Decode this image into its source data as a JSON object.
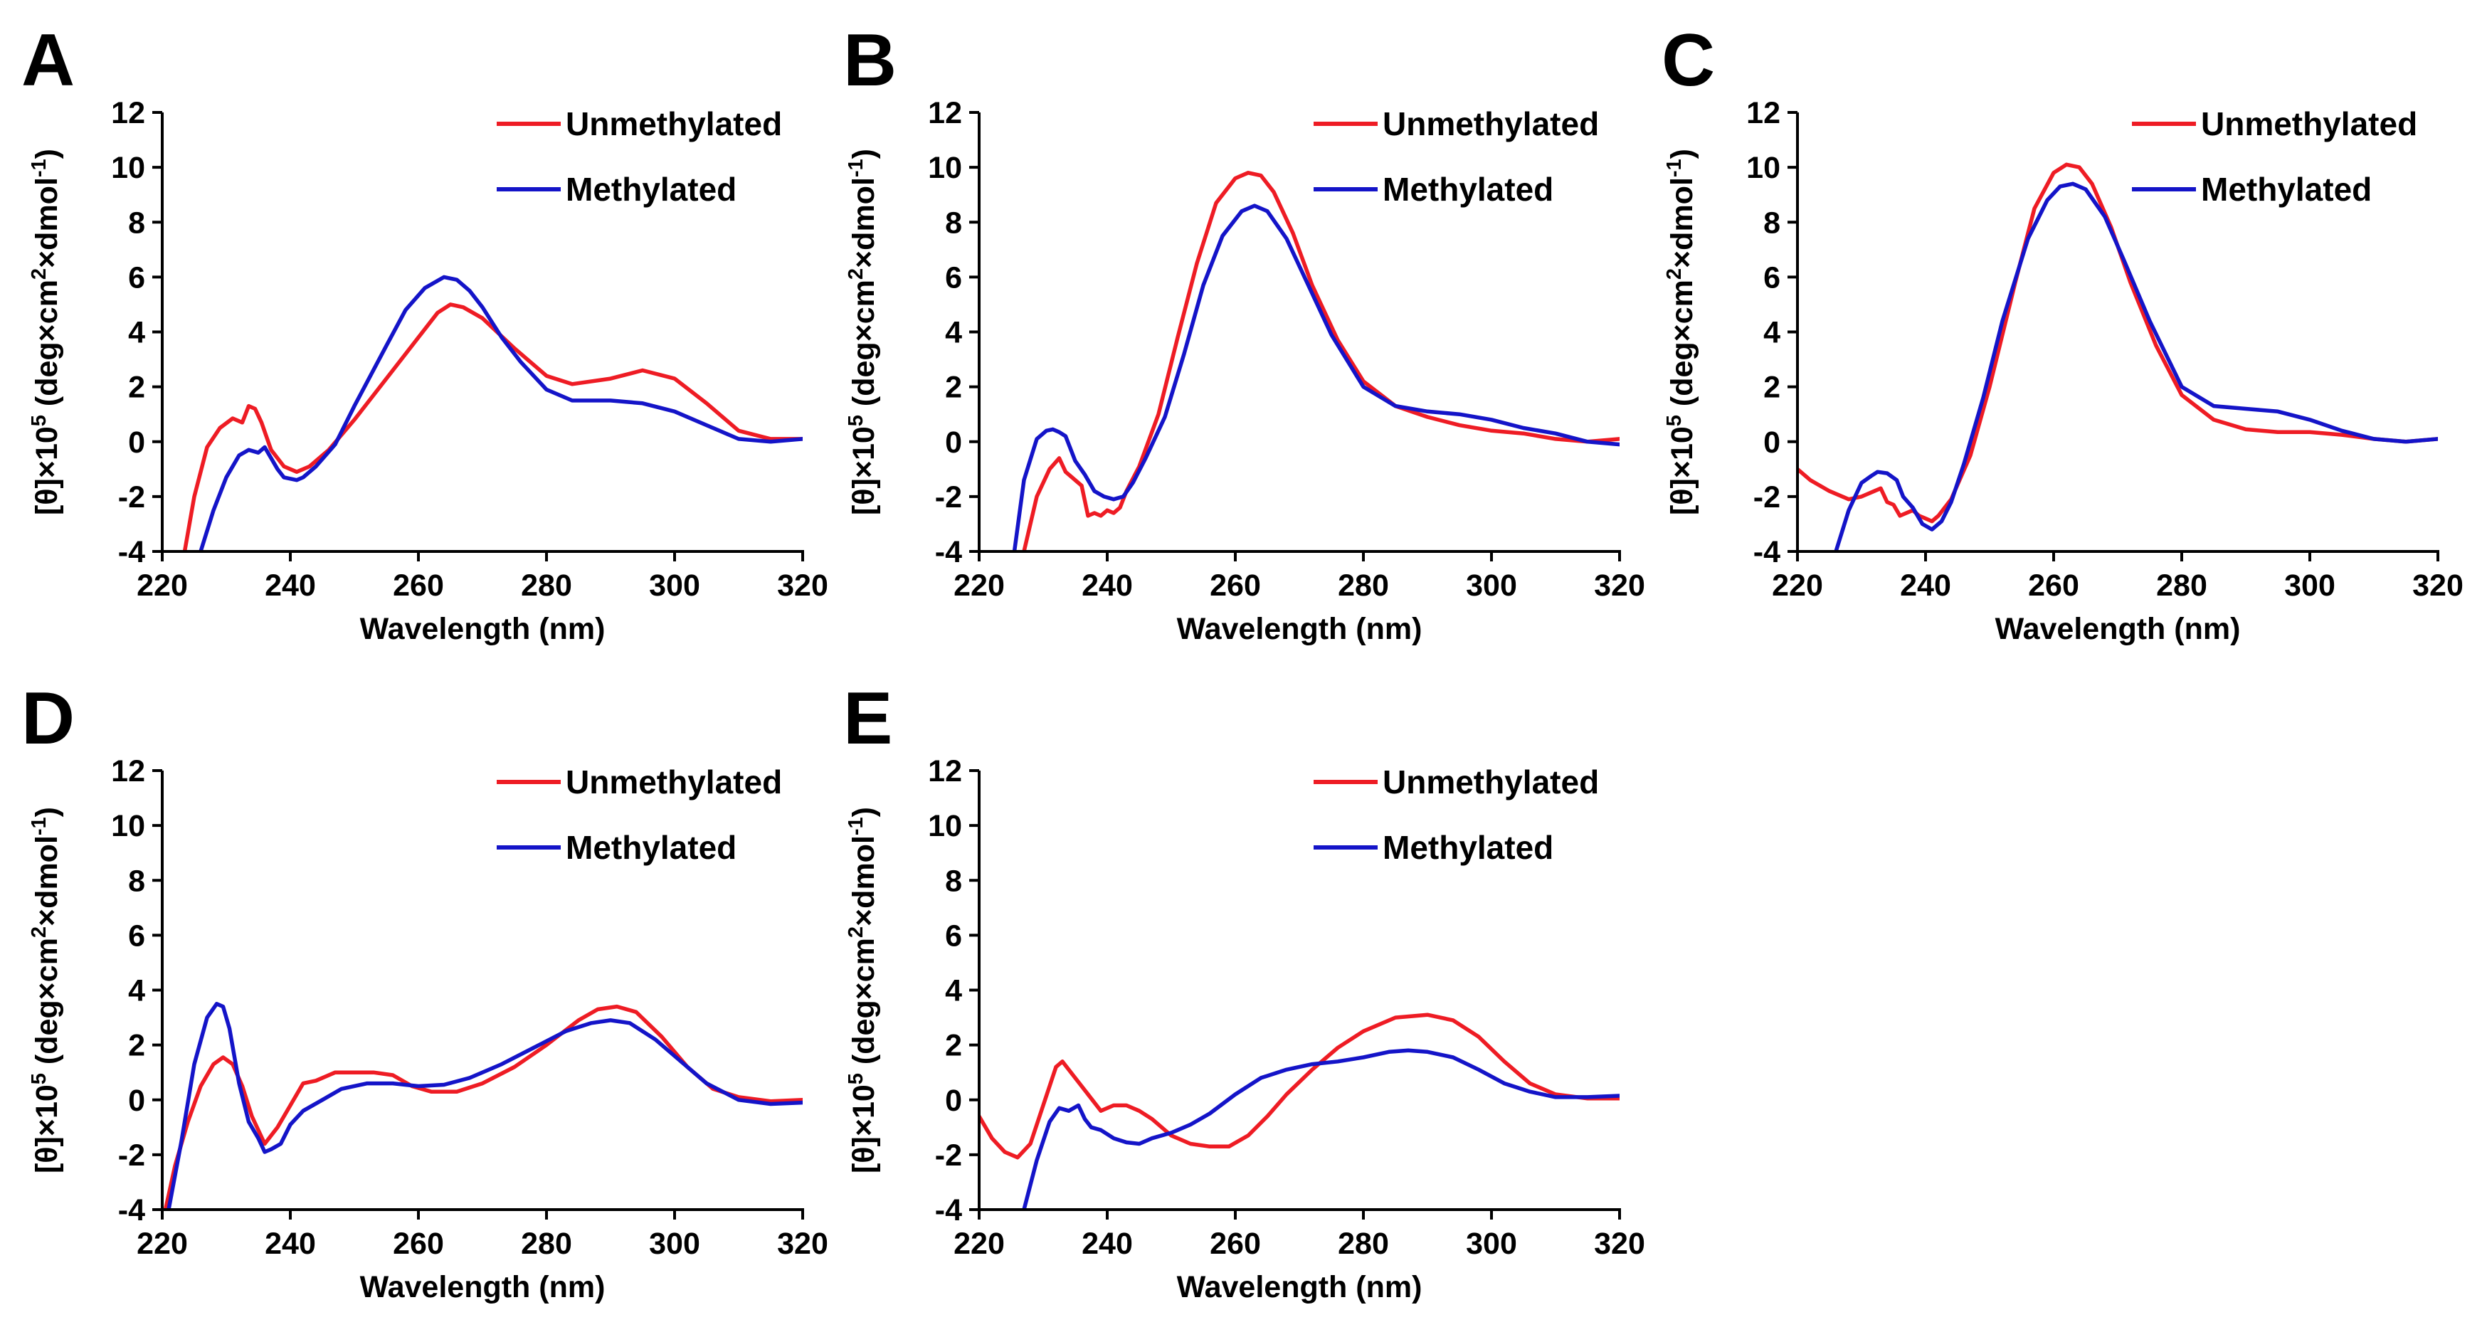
{
  "figure": {
    "y_axis_title_parts": [
      "[θ]×10",
      "5",
      " (deg×cm",
      "2",
      "×dmol",
      "-1",
      ")"
    ],
    "colors": {
      "unmethylated": "#ee1c24",
      "methylated": "#1414c8",
      "axis": "#000000"
    }
  },
  "chart_data": [
    {
      "type": "line",
      "panel": "A",
      "xlabel": "Wavelength (nm)",
      "ylabel": "[θ]×10^5 (deg×cm^2×dmol^-1)",
      "xlim": [
        220,
        320
      ],
      "ylim": [
        -4,
        12
      ],
      "xticks": [
        220,
        240,
        260,
        280,
        300,
        320
      ],
      "yticks": [
        -4,
        -2,
        0,
        2,
        4,
        6,
        8,
        10,
        12
      ],
      "legend": [
        "Unmethylated",
        "Methylated"
      ],
      "legend_position": "top-right",
      "series": [
        {
          "name": "Unmethylated",
          "color": "#ee1c24",
          "x": [
            223.5,
            225,
            227,
            229,
            231,
            232.5,
            233.5,
            234.5,
            235.5,
            237,
            239,
            241,
            243,
            246,
            250,
            255,
            260,
            263,
            265,
            267,
            270,
            275,
            280,
            284,
            290,
            295,
            300,
            305,
            310,
            315,
            320
          ],
          "y": [
            -4,
            -2,
            -0.2,
            0.5,
            0.85,
            0.7,
            1.3,
            1.2,
            0.7,
            -0.3,
            -0.9,
            -1.1,
            -0.9,
            -0.3,
            0.8,
            2.3,
            3.8,
            4.7,
            5.0,
            4.9,
            4.5,
            3.4,
            2.4,
            2.1,
            2.3,
            2.6,
            2.3,
            1.4,
            0.4,
            0.1,
            0.1
          ]
        },
        {
          "name": "Methylated",
          "color": "#1414c8",
          "x": [
            226,
            228,
            230,
            232,
            233.5,
            235,
            236,
            237,
            238,
            239,
            241,
            242,
            244,
            247,
            250,
            255,
            258,
            261,
            264,
            266,
            268,
            270,
            273,
            276,
            280,
            284,
            290,
            295,
            300,
            305,
            310,
            315,
            320
          ],
          "y": [
            -4,
            -2.5,
            -1.3,
            -0.5,
            -0.3,
            -0.4,
            -0.2,
            -0.6,
            -1.0,
            -1.3,
            -1.4,
            -1.3,
            -0.9,
            -0.1,
            1.3,
            3.5,
            4.8,
            5.6,
            6.0,
            5.9,
            5.5,
            4.9,
            3.8,
            2.9,
            1.9,
            1.5,
            1.5,
            1.4,
            1.1,
            0.6,
            0.1,
            0.0,
            0.1
          ]
        }
      ]
    },
    {
      "type": "line",
      "panel": "B",
      "xlabel": "Wavelength (nm)",
      "ylabel": "[θ]×10^5 (deg×cm^2×dmol^-1)",
      "xlim": [
        220,
        320
      ],
      "ylim": [
        -4,
        12
      ],
      "xticks": [
        220,
        240,
        260,
        280,
        300,
        320
      ],
      "yticks": [
        -4,
        -2,
        0,
        2,
        4,
        6,
        8,
        10,
        12
      ],
      "legend": [
        "Unmethylated",
        "Methylated"
      ],
      "legend_position": "top-right",
      "series": [
        {
          "name": "Unmethylated",
          "color": "#ee1c24",
          "x": [
            227,
            229,
            231,
            232.5,
            233.5,
            234.5,
            236,
            237,
            238,
            239,
            240,
            241,
            242,
            243,
            245,
            248,
            251,
            254,
            257,
            260,
            262,
            264,
            266,
            269,
            272,
            276,
            280,
            285,
            290,
            295,
            300,
            305,
            310,
            315,
            320
          ],
          "y": [
            -4,
            -2.0,
            -1.0,
            -0.6,
            -1.1,
            -1.3,
            -1.6,
            -2.7,
            -2.6,
            -2.7,
            -2.5,
            -2.6,
            -2.4,
            -1.8,
            -0.9,
            1.0,
            3.8,
            6.5,
            8.7,
            9.6,
            9.8,
            9.7,
            9.1,
            7.6,
            5.7,
            3.7,
            2.2,
            1.3,
            0.9,
            0.6,
            0.4,
            0.3,
            0.1,
            0.0,
            0.1
          ]
        },
        {
          "name": "Methylated",
          "color": "#1414c8",
          "x": [
            225.5,
            227,
            229,
            230.5,
            231.5,
            232.5,
            233.5,
            235,
            236.5,
            238,
            239.5,
            241,
            242.5,
            244,
            246,
            249,
            252,
            255,
            258,
            261,
            263,
            265,
            268,
            271,
            275,
            280,
            285,
            290,
            295,
            300,
            305,
            310,
            315,
            320
          ],
          "y": [
            -4,
            -1.4,
            0.1,
            0.4,
            0.45,
            0.35,
            0.2,
            -0.7,
            -1.2,
            -1.8,
            -2.0,
            -2.1,
            -2.0,
            -1.5,
            -0.6,
            0.9,
            3.2,
            5.7,
            7.5,
            8.4,
            8.6,
            8.4,
            7.4,
            5.9,
            3.9,
            2.0,
            1.3,
            1.1,
            1.0,
            0.8,
            0.5,
            0.3,
            0.0,
            -0.1
          ]
        }
      ]
    },
    {
      "type": "line",
      "panel": "C",
      "xlabel": "Wavelength (nm)",
      "ylabel": "[θ]×10^5 (deg×cm^2×dmol^-1)",
      "xlim": [
        220,
        320
      ],
      "ylim": [
        -4,
        12
      ],
      "xticks": [
        220,
        240,
        260,
        280,
        300,
        320
      ],
      "yticks": [
        -4,
        -2,
        0,
        2,
        4,
        6,
        8,
        10,
        12
      ],
      "legend": [
        "Unmethylated",
        "Methylated"
      ],
      "legend_position": "top-right",
      "series": [
        {
          "name": "Unmethylated",
          "color": "#ee1c24",
          "x": [
            220,
            222,
            225,
            228,
            230,
            232,
            233,
            234,
            235,
            236,
            237,
            238,
            239,
            240,
            241,
            242,
            244,
            247,
            250,
            254,
            257,
            260,
            262,
            264,
            266,
            269,
            272,
            276,
            280,
            285,
            290,
            295,
            300,
            305,
            310,
            315,
            320
          ],
          "y": [
            -1.0,
            -1.4,
            -1.8,
            -2.1,
            -2.0,
            -1.8,
            -1.7,
            -2.2,
            -2.3,
            -2.7,
            -2.6,
            -2.5,
            -2.7,
            -2.8,
            -2.9,
            -2.7,
            -2.1,
            -0.5,
            2.0,
            5.8,
            8.5,
            9.8,
            10.1,
            10.0,
            9.4,
            7.8,
            5.8,
            3.5,
            1.7,
            0.8,
            0.45,
            0.35,
            0.35,
            0.25,
            0.1,
            0.0,
            0.1
          ]
        },
        {
          "name": "Methylated",
          "color": "#1414c8",
          "x": [
            226,
            228,
            230,
            231.5,
            232.5,
            234,
            235.5,
            236.5,
            238,
            239.5,
            241,
            242.5,
            244,
            246,
            249,
            252,
            256,
            259,
            261,
            263,
            265,
            268,
            271,
            275,
            280,
            285,
            290,
            295,
            300,
            305,
            310,
            315,
            320
          ],
          "y": [
            -4,
            -2.5,
            -1.5,
            -1.25,
            -1.1,
            -1.15,
            -1.4,
            -2.0,
            -2.4,
            -3.0,
            -3.2,
            -2.9,
            -2.2,
            -0.8,
            1.6,
            4.4,
            7.4,
            8.8,
            9.3,
            9.4,
            9.2,
            8.2,
            6.6,
            4.4,
            2.0,
            1.3,
            1.2,
            1.1,
            0.8,
            0.4,
            0.1,
            0.0,
            0.1
          ]
        }
      ]
    },
    {
      "type": "line",
      "panel": "D",
      "xlabel": "Wavelength (nm)",
      "ylabel": "[θ]×10^5 (deg×cm^2×dmol^-1)",
      "xlim": [
        220,
        320
      ],
      "ylim": [
        -4,
        12
      ],
      "xticks": [
        220,
        240,
        260,
        280,
        300,
        320
      ],
      "yticks": [
        -4,
        -2,
        0,
        2,
        4,
        6,
        8,
        10,
        12
      ],
      "legend": [
        "Unmethylated",
        "Methylated"
      ],
      "legend_position": "top-right",
      "series": [
        {
          "name": "Unmethylated",
          "color": "#ee1c24",
          "x": [
            220.5,
            222,
            224,
            226,
            228,
            229.5,
            231,
            232.5,
            234,
            236,
            238,
            240,
            242,
            244,
            247,
            250,
            253,
            256,
            259,
            262,
            266,
            270,
            275,
            280,
            285,
            288,
            291,
            294,
            298,
            302,
            306,
            310,
            315,
            320
          ],
          "y": [
            -4,
            -2.4,
            -0.8,
            0.5,
            1.3,
            1.55,
            1.3,
            0.5,
            -0.6,
            -1.6,
            -1.0,
            -0.2,
            0.6,
            0.7,
            1.0,
            1.0,
            1.0,
            0.9,
            0.5,
            0.3,
            0.3,
            0.6,
            1.2,
            2.0,
            2.9,
            3.3,
            3.4,
            3.2,
            2.3,
            1.2,
            0.4,
            0.1,
            -0.05,
            0.0
          ]
        },
        {
          "name": "Methylated",
          "color": "#1414c8",
          "x": [
            221,
            223,
            225,
            227,
            228.5,
            229.5,
            230.5,
            232,
            233.5,
            235,
            236,
            237,
            238.5,
            240,
            242,
            245,
            248,
            252,
            256,
            260,
            264,
            268,
            273,
            278,
            283,
            287,
            290,
            293,
            297,
            301,
            305,
            310,
            315,
            320
          ],
          "y": [
            -4,
            -1.5,
            1.3,
            3.0,
            3.5,
            3.4,
            2.6,
            0.6,
            -0.8,
            -1.4,
            -1.9,
            -1.8,
            -1.6,
            -0.9,
            -0.4,
            0.0,
            0.4,
            0.6,
            0.6,
            0.5,
            0.55,
            0.8,
            1.3,
            1.9,
            2.5,
            2.8,
            2.9,
            2.8,
            2.2,
            1.4,
            0.6,
            0.0,
            -0.15,
            -0.1
          ]
        }
      ]
    },
    {
      "type": "line",
      "panel": "E",
      "xlabel": "Wavelength (nm)",
      "ylabel": "[θ]×10^5 (deg×cm^2×dmol^-1)",
      "xlim": [
        220,
        320
      ],
      "ylim": [
        -4,
        12
      ],
      "xticks": [
        220,
        240,
        260,
        280,
        300,
        320
      ],
      "yticks": [
        -4,
        -2,
        0,
        2,
        4,
        6,
        8,
        10,
        12
      ],
      "legend": [
        "Unmethylated",
        "Methylated"
      ],
      "legend_position": "top-right",
      "series": [
        {
          "name": "Unmethylated",
          "color": "#ee1c24",
          "x": [
            220,
            222,
            224,
            226,
            228,
            230,
            232,
            233,
            235,
            237,
            239,
            241,
            243,
            245,
            247,
            250,
            253,
            256,
            259,
            262,
            265,
            268,
            272,
            276,
            280,
            285,
            290,
            294,
            298,
            302,
            306,
            310,
            315,
            320
          ],
          "y": [
            -0.6,
            -1.4,
            -1.9,
            -2.1,
            -1.6,
            -0.2,
            1.2,
            1.4,
            0.8,
            0.2,
            -0.4,
            -0.2,
            -0.2,
            -0.4,
            -0.7,
            -1.3,
            -1.6,
            -1.7,
            -1.7,
            -1.3,
            -0.6,
            0.2,
            1.1,
            1.9,
            2.5,
            3.0,
            3.1,
            2.9,
            2.3,
            1.4,
            0.6,
            0.2,
            0.05,
            0.05
          ]
        },
        {
          "name": "Methylated",
          "color": "#1414c8",
          "x": [
            227,
            229,
            231,
            232.5,
            234,
            235.5,
            236.5,
            237.5,
            239,
            241,
            243,
            245,
            247,
            250,
            253,
            256,
            260,
            264,
            268,
            272,
            276,
            280,
            284,
            287,
            290,
            294,
            298,
            302,
            306,
            310,
            315,
            320
          ],
          "y": [
            -4,
            -2.2,
            -0.8,
            -0.3,
            -0.4,
            -0.2,
            -0.7,
            -1.0,
            -1.1,
            -1.4,
            -1.55,
            -1.6,
            -1.4,
            -1.2,
            -0.9,
            -0.5,
            0.2,
            0.8,
            1.1,
            1.3,
            1.4,
            1.55,
            1.75,
            1.8,
            1.75,
            1.55,
            1.1,
            0.6,
            0.3,
            0.1,
            0.1,
            0.15
          ]
        }
      ]
    }
  ]
}
